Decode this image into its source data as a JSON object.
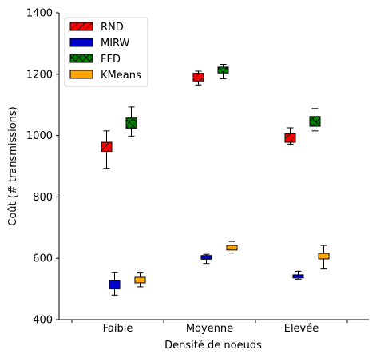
{
  "chart_data": {
    "type": "boxplot",
    "xlabel": "Densité de noeuds",
    "ylabel": "Coût (# transmissions)",
    "ylim": [
      400,
      1400
    ],
    "yticks": [
      400,
      600,
      800,
      1000,
      1200,
      1400
    ],
    "categories": [
      "Faible",
      "Moyenne",
      "Elevée"
    ],
    "grid": false,
    "legend_position": "top-left",
    "series": [
      {
        "name": "RND",
        "color": "#ff0000",
        "hatch": "diagonal",
        "boxes": [
          {
            "whislo": 893,
            "q1": 948,
            "med": 962,
            "q3": 978,
            "whishi": 1015
          },
          {
            "whislo": 1165,
            "q1": 1178,
            "med": 1190,
            "q3": 1203,
            "whishi": 1210
          },
          {
            "whislo": 972,
            "q1": 978,
            "med": 990,
            "q3": 1006,
            "whishi": 1025
          }
        ]
      },
      {
        "name": "MIRW",
        "color": "#0000cc",
        "hatch": "none",
        "boxes": [
          {
            "whislo": 480,
            "q1": 500,
            "med": 515,
            "q3": 528,
            "whishi": 553
          },
          {
            "whislo": 583,
            "q1": 597,
            "med": 604,
            "q3": 609,
            "whishi": 613
          },
          {
            "whislo": 532,
            "q1": 536,
            "med": 541,
            "q3": 546,
            "whishi": 558
          }
        ]
      },
      {
        "name": "FFD",
        "color": "#008000",
        "hatch": "cross",
        "boxes": [
          {
            "whislo": 998,
            "q1": 1024,
            "med": 1038,
            "q3": 1057,
            "whishi": 1093
          },
          {
            "whislo": 1185,
            "q1": 1204,
            "med": 1212,
            "q3": 1223,
            "whishi": 1232
          },
          {
            "whislo": 1015,
            "q1": 1030,
            "med": 1047,
            "q3": 1062,
            "whishi": 1088
          }
        ]
      },
      {
        "name": "KMeans",
        "color": "#ffa500",
        "hatch": "none",
        "boxes": [
          {
            "whislo": 507,
            "q1": 520,
            "med": 530,
            "q3": 538,
            "whishi": 552
          },
          {
            "whislo": 617,
            "q1": 627,
            "med": 636,
            "q3": 642,
            "whishi": 655
          },
          {
            "whislo": 565,
            "q1": 598,
            "med": 607,
            "q3": 616,
            "whishi": 642
          }
        ]
      }
    ]
  }
}
